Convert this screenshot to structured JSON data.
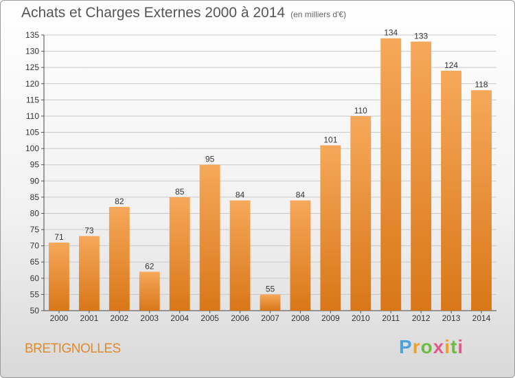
{
  "title": "Achats et Charges Externes 2000 à 2014",
  "unit": "(en milliers d'€)",
  "city": "BRETIGNOLLES",
  "logo": {
    "text": "Proxiti"
  },
  "colors": {
    "bar_top": "#f6a85a",
    "bar_bottom": "#d97718",
    "grid": "#c8c8c8"
  },
  "chart_data": {
    "type": "bar",
    "title": "Achats et Charges Externes 2000 à 2014",
    "categories": [
      "2000",
      "2001",
      "2002",
      "2003",
      "2004",
      "2005",
      "2006",
      "2007",
      "2008",
      "2009",
      "2010",
      "2011",
      "2012",
      "2013",
      "2014"
    ],
    "values": [
      71,
      73,
      82,
      62,
      85,
      95,
      84,
      55,
      84,
      101,
      110,
      134,
      133,
      124,
      118
    ],
    "ylim": [
      50,
      135
    ],
    "yticks": [
      50,
      55,
      60,
      65,
      70,
      75,
      80,
      85,
      90,
      95,
      100,
      105,
      110,
      115,
      120,
      125,
      130,
      135
    ],
    "grid": true,
    "data_labels": true
  }
}
